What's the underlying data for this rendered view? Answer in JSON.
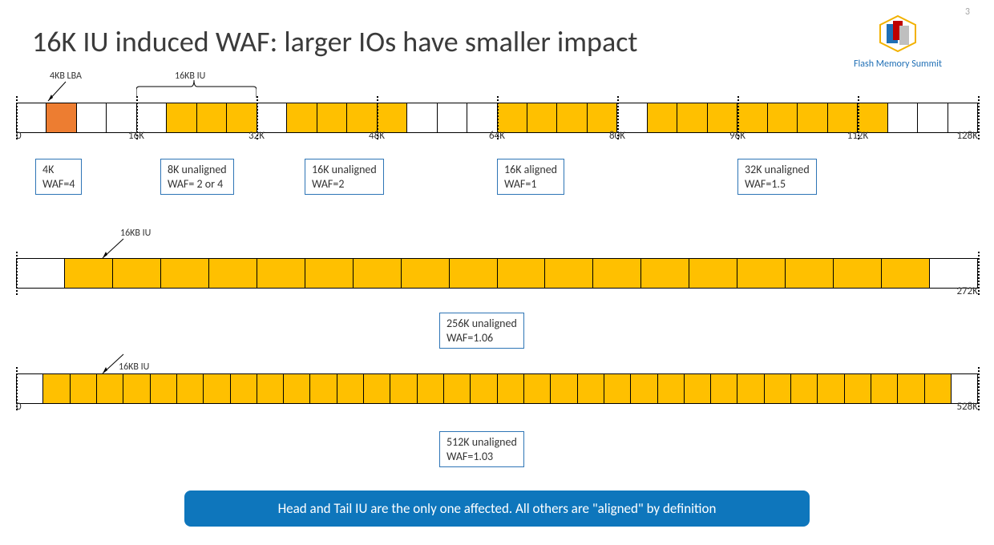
{
  "slide_number": "3",
  "title": "16K IU induced WAF: larger IOs have smaller impact",
  "logo": {
    "text": "Flash Memory Summit"
  },
  "colors": {
    "filled_cell": "#ffc000",
    "orange_cell": "#ed7d31",
    "box_border": "#2e75b6",
    "footer_bg": "#0e76bc",
    "footer_text": "#ffffff",
    "title_color": "#3b3b3b"
  },
  "annotations": {
    "lba": "4KB LBA",
    "iu_top": "16KB IU",
    "iu_mid": "16KB IU",
    "iu_bot": "16KB IU"
  },
  "row1": {
    "cell_count": 32,
    "filled_orange_idx": [
      1
    ],
    "filled_idx": [
      5,
      6,
      7,
      9,
      10,
      11,
      12,
      16,
      17,
      18,
      19,
      21,
      22,
      23,
      24,
      25,
      26,
      27,
      28
    ],
    "ticks": [
      {
        "pos": 0,
        "label": "0",
        "align": "left"
      },
      {
        "pos": 4,
        "label": "16K"
      },
      {
        "pos": 8,
        "label": "32K"
      },
      {
        "pos": 12,
        "label": "48K"
      },
      {
        "pos": 16,
        "label": "64K"
      },
      {
        "pos": 20,
        "label": "80K"
      },
      {
        "pos": 24,
        "label": "96K"
      },
      {
        "pos": 28,
        "label": "112K"
      },
      {
        "pos": 32,
        "label": "128K",
        "align": "right"
      }
    ],
    "boxes": [
      {
        "left_pct": 2,
        "text": "4K\nWAF=4"
      },
      {
        "left_pct": 15,
        "text": "8K unaligned\nWAF= 2 or 4"
      },
      {
        "left_pct": 30,
        "text": "16K unaligned\nWAF=2"
      },
      {
        "left_pct": 50,
        "text": "16K aligned\nWAF=1"
      },
      {
        "left_pct": 75,
        "text": "32K unaligned\nWAF=1.5"
      }
    ]
  },
  "row2": {
    "cell_count": 20,
    "filled_idx_range": [
      1,
      18
    ],
    "ticks": [
      {
        "pos": 0,
        "label": ""
      },
      {
        "pos": 20,
        "label": "272K",
        "align": "right"
      }
    ],
    "box": {
      "left_pct": 44,
      "text": "256K unaligned\nWAF=1.06"
    }
  },
  "row3": {
    "cell_count": 36,
    "filled_idx_range": [
      1,
      34
    ],
    "ticks": [
      {
        "pos": 0,
        "label": "0",
        "align": "left"
      },
      {
        "pos": 36,
        "label": "528K",
        "align": "right"
      }
    ],
    "box": {
      "left_pct": 44,
      "text": "512K unaligned\nWAF=1.03"
    }
  },
  "footer": "Head and Tail IU are the only one affected. All others are \"aligned\" by definition"
}
